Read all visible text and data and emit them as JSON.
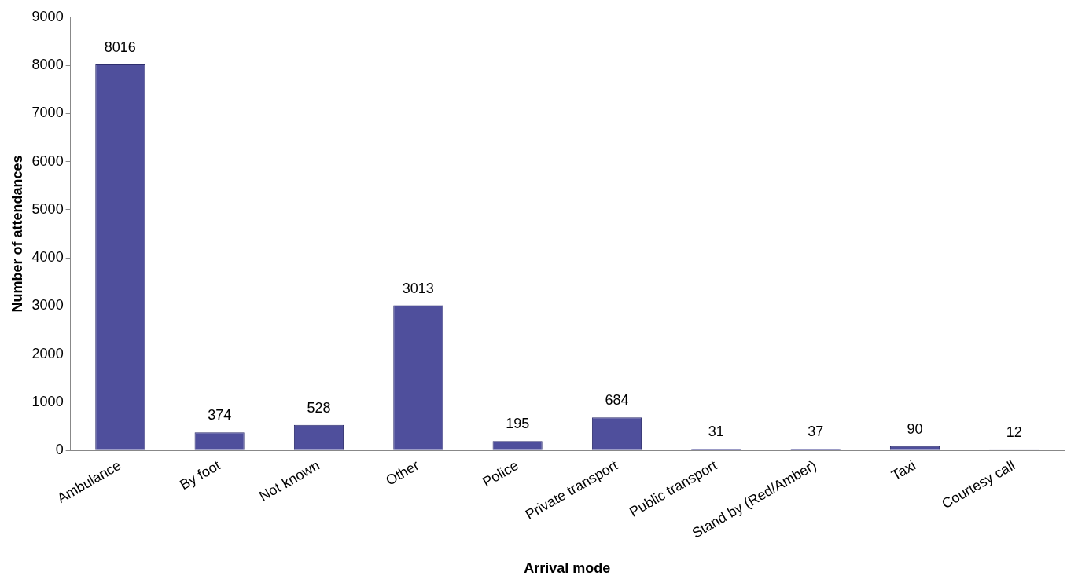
{
  "chart_data": {
    "type": "bar",
    "xlabel": "Arrival mode",
    "ylabel": "Number of attendances",
    "categories": [
      "Ambulance",
      "By foot",
      "Not known",
      "Other",
      "Police",
      "Private transport",
      "Public transport",
      "Stand by (Red/Amber)",
      "Taxi",
      "Courtesy call"
    ],
    "values": [
      8016,
      374,
      528,
      3013,
      195,
      684,
      31,
      37,
      90,
      12
    ],
    "color": "#4f4f9c",
    "ylim": [
      0,
      9000
    ],
    "yticks": [
      0,
      1000,
      2000,
      3000,
      4000,
      5000,
      6000,
      7000,
      8000,
      9000
    ],
    "grid": false,
    "legend": false,
    "data_labels": true
  }
}
